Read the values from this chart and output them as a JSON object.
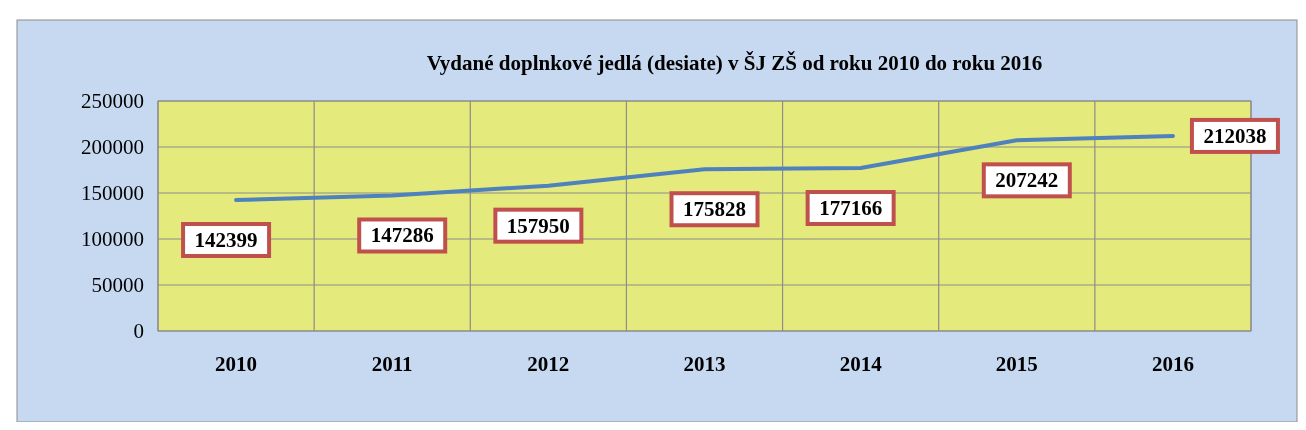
{
  "chart_data": {
    "type": "line",
    "title": "Vydané doplnkové jedlá (desiate) v ŠJ ZŠ od roku 2010 do roku 2016",
    "categories": [
      "2010",
      "2011",
      "2012",
      "2013",
      "2014",
      "2015",
      "2016"
    ],
    "series": [
      {
        "color": "#4f81bd",
        "values": [
          142399,
          147286,
          157950,
          175828,
          177166,
          207242,
          212038
        ]
      }
    ],
    "ylim": [
      0,
      250000
    ],
    "yticks": [
      0,
      50000,
      100000,
      150000,
      200000,
      250000
    ],
    "grid": true,
    "data_labels": true,
    "marker": "none",
    "line_style": "solid"
  }
}
